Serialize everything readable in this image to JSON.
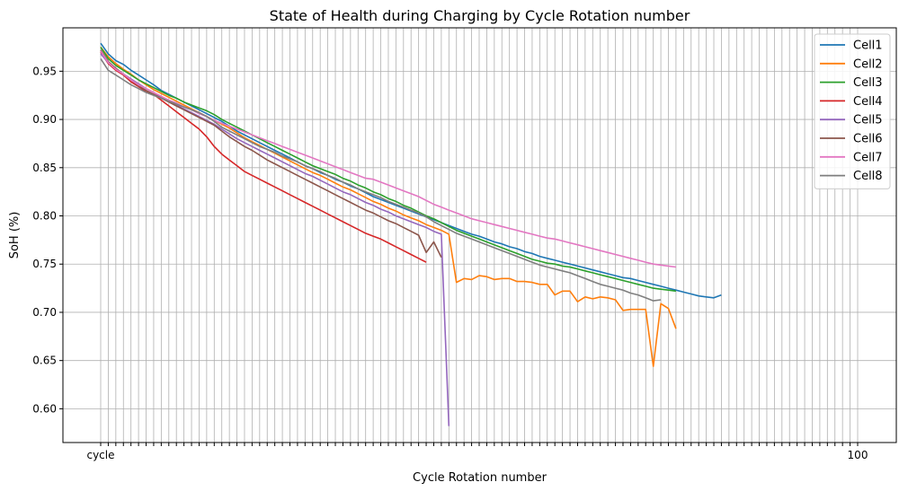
{
  "chart_data": {
    "type": "line",
    "title": "State of Health during Charging by Cycle Rotation number",
    "xlabel": "Cycle Rotation number",
    "ylabel": "SoH (%)",
    "ylim": [
      0.565,
      0.995
    ],
    "yticks": [
      0.6,
      0.65,
      0.7,
      0.75,
      0.8,
      0.85,
      0.9,
      0.95
    ],
    "ytick_labels": [
      "0.60",
      "0.65",
      "0.70",
      "0.75",
      "0.80",
      "0.85",
      "0.90",
      "0.95"
    ],
    "x_categories_count": 101,
    "x_tick_text_first": "cycle",
    "x_tick_text_last": "100",
    "grid": true,
    "legend_position": "top-right",
    "series": [
      {
        "name": "Cell1",
        "color": "#1f77b4",
        "values": [
          0.979,
          0.968,
          0.961,
          0.957,
          0.951,
          0.946,
          0.941,
          0.936,
          0.93,
          0.926,
          0.922,
          0.918,
          0.914,
          0.91,
          0.906,
          0.902,
          0.898,
          0.893,
          0.888,
          0.884,
          0.88,
          0.876,
          0.872,
          0.868,
          0.864,
          0.86,
          0.856,
          0.852,
          0.849,
          0.845,
          0.842,
          0.838,
          0.835,
          0.831,
          0.828,
          0.824,
          0.82,
          0.817,
          0.814,
          0.811,
          0.808,
          0.805,
          0.802,
          0.799,
          0.796,
          0.793,
          0.79,
          0.787,
          0.784,
          0.781,
          0.779,
          0.776,
          0.773,
          0.771,
          0.768,
          0.766,
          0.763,
          0.761,
          0.758,
          0.756,
          0.754,
          0.752,
          0.75,
          0.748,
          0.746,
          0.744,
          0.742,
          0.74,
          0.738,
          0.736,
          0.735,
          0.733,
          0.731,
          0.729,
          0.727,
          0.725,
          0.723,
          0.721,
          0.719,
          0.717,
          0.716,
          0.715,
          0.718
        ]
      },
      {
        "name": "Cell2",
        "color": "#ff7f0e",
        "values": [
          0.975,
          0.965,
          0.958,
          0.952,
          0.947,
          0.941,
          0.936,
          0.931,
          0.927,
          0.923,
          0.919,
          0.915,
          0.911,
          0.907,
          0.903,
          0.899,
          0.895,
          0.891,
          0.886,
          0.881,
          0.877,
          0.873,
          0.869,
          0.865,
          0.861,
          0.857,
          0.853,
          0.849,
          0.845,
          0.842,
          0.838,
          0.834,
          0.83,
          0.827,
          0.823,
          0.819,
          0.815,
          0.812,
          0.808,
          0.805,
          0.801,
          0.798,
          0.795,
          0.791,
          0.788,
          0.785,
          0.781,
          0.731,
          0.735,
          0.734,
          0.738,
          0.737,
          0.734,
          0.735,
          0.735,
          0.732,
          0.732,
          0.731,
          0.729,
          0.729,
          0.718,
          0.722,
          0.722,
          0.711,
          0.716,
          0.714,
          0.716,
          0.715,
          0.713,
          0.702,
          0.703,
          0.703,
          0.703,
          0.644,
          0.709,
          0.704,
          0.683
        ]
      },
      {
        "name": "Cell3",
        "color": "#2ca02c",
        "values": [
          0.975,
          0.963,
          0.956,
          0.951,
          0.946,
          0.941,
          0.937,
          0.933,
          0.929,
          0.925,
          0.922,
          0.918,
          0.915,
          0.912,
          0.909,
          0.905,
          0.9,
          0.896,
          0.892,
          0.888,
          0.884,
          0.88,
          0.876,
          0.872,
          0.868,
          0.864,
          0.86,
          0.856,
          0.852,
          0.849,
          0.846,
          0.843,
          0.839,
          0.836,
          0.832,
          0.829,
          0.825,
          0.822,
          0.818,
          0.815,
          0.811,
          0.808,
          0.804,
          0.8,
          0.797,
          0.793,
          0.789,
          0.785,
          0.782,
          0.779,
          0.776,
          0.773,
          0.77,
          0.767,
          0.764,
          0.761,
          0.758,
          0.755,
          0.753,
          0.751,
          0.75,
          0.748,
          0.747,
          0.745,
          0.743,
          0.741,
          0.739,
          0.737,
          0.735,
          0.733,
          0.731,
          0.729,
          0.727,
          0.725,
          0.724,
          0.723,
          0.722
        ]
      },
      {
        "name": "Cell4",
        "color": "#d62728",
        "values": [
          0.97,
          0.958,
          0.951,
          0.946,
          0.939,
          0.934,
          0.929,
          0.926,
          0.92,
          0.914,
          0.908,
          0.902,
          0.896,
          0.89,
          0.882,
          0.872,
          0.864,
          0.858,
          0.852,
          0.846,
          0.842,
          0.838,
          0.834,
          0.83,
          0.826,
          0.822,
          0.818,
          0.814,
          0.81,
          0.806,
          0.802,
          0.798,
          0.794,
          0.79,
          0.786,
          0.782,
          0.779,
          0.776,
          0.772,
          0.768,
          0.764,
          0.76,
          0.756,
          0.752
        ]
      },
      {
        "name": "Cell5",
        "color": "#9467bd",
        "values": [
          0.968,
          0.959,
          0.953,
          0.947,
          0.942,
          0.937,
          0.932,
          0.928,
          0.923,
          0.919,
          0.915,
          0.911,
          0.907,
          0.903,
          0.899,
          0.895,
          0.89,
          0.885,
          0.88,
          0.876,
          0.872,
          0.868,
          0.864,
          0.86,
          0.856,
          0.852,
          0.848,
          0.844,
          0.841,
          0.837,
          0.833,
          0.829,
          0.825,
          0.822,
          0.818,
          0.814,
          0.811,
          0.807,
          0.804,
          0.8,
          0.797,
          0.794,
          0.791,
          0.788,
          0.784,
          0.781,
          0.582
        ]
      },
      {
        "name": "Cell6",
        "color": "#8c564b",
        "values": [
          0.972,
          0.96,
          0.953,
          0.947,
          0.941,
          0.935,
          0.93,
          0.926,
          0.922,
          0.918,
          0.914,
          0.91,
          0.906,
          0.902,
          0.898,
          0.894,
          0.888,
          0.882,
          0.877,
          0.872,
          0.868,
          0.863,
          0.858,
          0.854,
          0.85,
          0.846,
          0.842,
          0.838,
          0.834,
          0.83,
          0.826,
          0.822,
          0.818,
          0.814,
          0.81,
          0.806,
          0.803,
          0.799,
          0.795,
          0.792,
          0.788,
          0.784,
          0.78,
          0.762,
          0.773,
          0.757
        ]
      },
      {
        "name": "Cell7",
        "color": "#e377c2",
        "values": [
          0.971,
          0.959,
          0.952,
          0.947,
          0.941,
          0.936,
          0.932,
          0.928,
          0.924,
          0.92,
          0.917,
          0.913,
          0.91,
          0.906,
          0.903,
          0.899,
          0.896,
          0.893,
          0.89,
          0.887,
          0.884,
          0.881,
          0.878,
          0.875,
          0.872,
          0.869,
          0.866,
          0.863,
          0.86,
          0.857,
          0.854,
          0.851,
          0.848,
          0.845,
          0.842,
          0.839,
          0.838,
          0.835,
          0.832,
          0.829,
          0.826,
          0.823,
          0.82,
          0.816,
          0.812,
          0.809,
          0.806,
          0.803,
          0.8,
          0.797,
          0.795,
          0.793,
          0.791,
          0.789,
          0.787,
          0.785,
          0.783,
          0.781,
          0.779,
          0.777,
          0.776,
          0.774,
          0.772,
          0.77,
          0.768,
          0.766,
          0.764,
          0.762,
          0.76,
          0.758,
          0.756,
          0.754,
          0.752,
          0.75,
          0.749,
          0.748,
          0.747
        ]
      },
      {
        "name": "Cell8",
        "color": "#7f7f7f",
        "values": [
          0.963,
          0.951,
          0.946,
          0.941,
          0.936,
          0.932,
          0.928,
          0.925,
          0.922,
          0.919,
          0.916,
          0.913,
          0.91,
          0.907,
          0.903,
          0.898,
          0.892,
          0.888,
          0.884,
          0.88,
          0.876,
          0.872,
          0.869,
          0.866,
          0.862,
          0.859,
          0.856,
          0.852,
          0.849,
          0.846,
          0.842,
          0.839,
          0.835,
          0.832,
          0.828,
          0.825,
          0.822,
          0.819,
          0.815,
          0.812,
          0.809,
          0.806,
          0.803,
          0.799,
          0.794,
          0.79,
          0.786,
          0.782,
          0.779,
          0.776,
          0.773,
          0.77,
          0.767,
          0.764,
          0.761,
          0.758,
          0.755,
          0.752,
          0.749,
          0.747,
          0.745,
          0.743,
          0.741,
          0.738,
          0.735,
          0.732,
          0.729,
          0.727,
          0.725,
          0.723,
          0.72,
          0.718,
          0.715,
          0.712,
          0.713
        ]
      }
    ]
  }
}
